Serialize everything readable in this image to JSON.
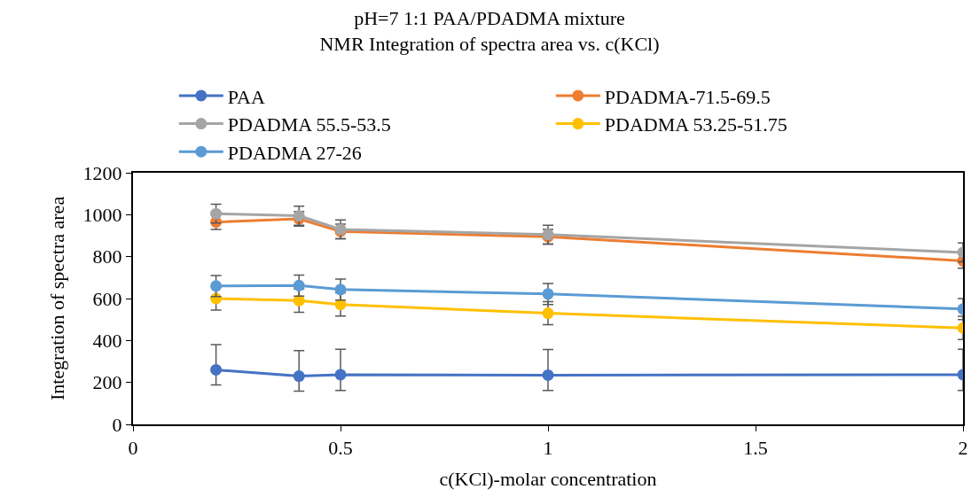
{
  "chart_data": {
    "type": "line",
    "title": "pH=7 1:1 PAA/PDADMA mixture\nNMR Integration of spectra area vs. c(KCl)",
    "xlabel": "c(KCl)-molar concentration",
    "ylabel": "Integration of spectra area",
    "x": [
      0.2,
      0.4,
      0.5,
      1,
      2
    ],
    "series": [
      {
        "name": "PAA",
        "color": "#4472c4",
        "values": [
          260,
          230,
          237,
          235,
          237
        ],
        "errors": [
          [
            188,
            380
          ],
          [
            158,
            352
          ],
          [
            162,
            358
          ],
          [
            162,
            357
          ],
          [
            162,
            358
          ]
        ]
      },
      {
        "name": "PDADMA-71.5-69.5",
        "color": "#ed7d31",
        "values": [
          965,
          980,
          920,
          895,
          780
        ],
        "errors": [
          35,
          35,
          35,
          35,
          35
        ]
      },
      {
        "name": "PDADMA 55.5-53.5",
        "color": "#a5a5a5",
        "values": [
          1005,
          995,
          930,
          905,
          820
        ],
        "errors": [
          45,
          45,
          45,
          45,
          45
        ]
      },
      {
        "name": "PDADMA 53.25-51.75",
        "color": "#ffc000",
        "values": [
          600,
          590,
          572,
          530,
          460
        ],
        "errors": [
          55,
          55,
          55,
          55,
          55
        ]
      },
      {
        "name": "PDADMA 27-26",
        "color": "#5b9bd5",
        "values": [
          660,
          662,
          643,
          622,
          550
        ],
        "errors": [
          50,
          50,
          50,
          50,
          50
        ]
      }
    ],
    "xlim": [
      0,
      2
    ],
    "xticks": [
      0,
      0.5,
      1,
      1.5,
      2
    ],
    "ylim": [
      0,
      1200
    ],
    "yticks": [
      0,
      200,
      400,
      600,
      800,
      1000,
      1200
    ],
    "legend": "top",
    "marker": "circle",
    "line_style": "solid"
  }
}
